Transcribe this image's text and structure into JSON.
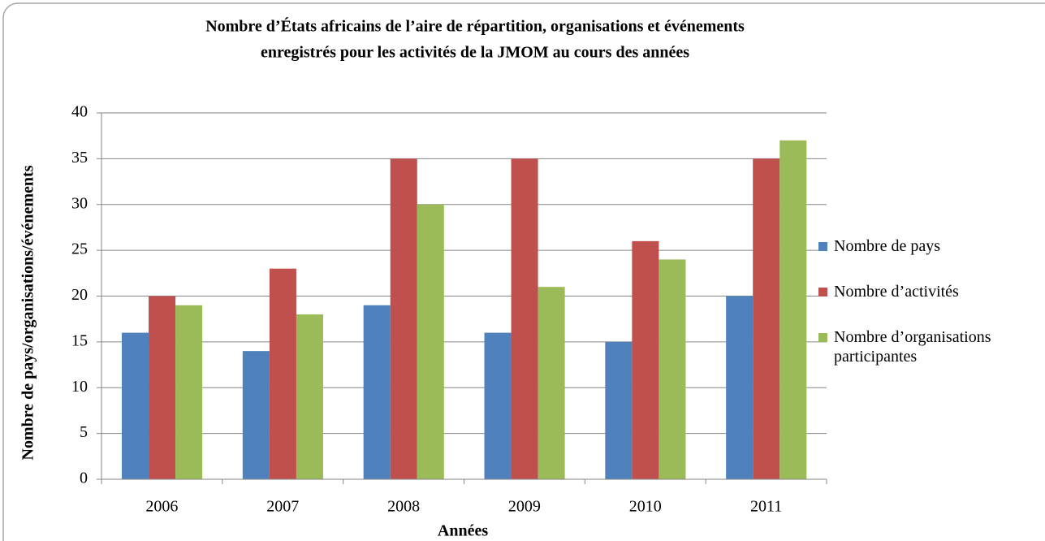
{
  "chart_data": {
    "type": "bar",
    "title": [
      "Nombre d’États africains de l’aire de répartition, organisations et événements",
      "enregistrés pour les activités de la JMOM au cours des années"
    ],
    "x_label": "Années",
    "y_label": "Nombre de pays/organisations/événements",
    "categories": [
      "2006",
      "2007",
      "2008",
      "2009",
      "2010",
      "2011"
    ],
    "series": [
      {
        "name": "Nombre de pays",
        "color": "#4f81bd",
        "values": [
          16,
          14,
          19,
          16,
          15,
          20
        ]
      },
      {
        "name": "Nombre d’activités",
        "color": "#c0504d",
        "values": [
          20,
          23,
          35,
          35,
          26,
          35
        ]
      },
      {
        "name": "Nombre d’organisations participantes",
        "color": "#9bbb59",
        "values": [
          19,
          18,
          30,
          21,
          24,
          37
        ]
      }
    ],
    "ylim": [
      0,
      40
    ],
    "yticks": [
      0,
      5,
      10,
      15,
      20,
      25,
      30,
      35,
      40
    ],
    "grid": true,
    "legend": "right"
  }
}
